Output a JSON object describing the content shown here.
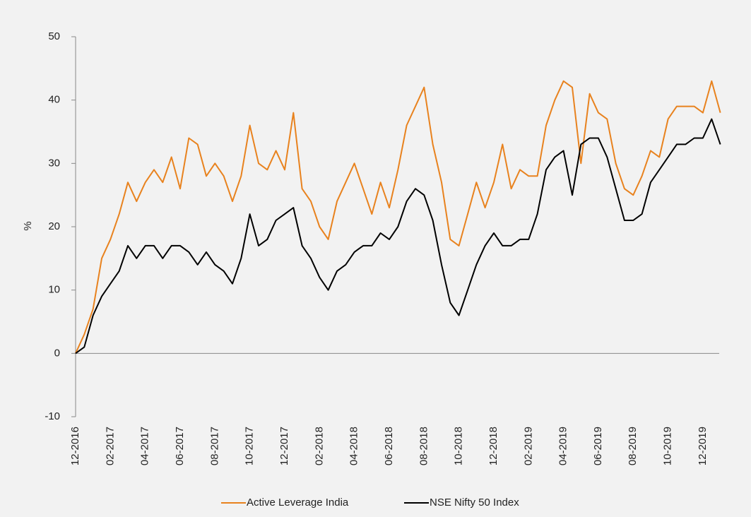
{
  "chart_data": {
    "type": "line",
    "y_label": "%",
    "categories": [
      "12-2016",
      null,
      null,
      null,
      "02-2017",
      null,
      null,
      null,
      "04-2017",
      null,
      null,
      null,
      "06-2017",
      null,
      null,
      null,
      "08-2017",
      null,
      null,
      null,
      "10-2017",
      null,
      null,
      null,
      "12-2017",
      null,
      null,
      null,
      "02-2018",
      null,
      null,
      null,
      "04-2018",
      null,
      null,
      null,
      "06-2018",
      null,
      null,
      null,
      "08-2018",
      null,
      null,
      null,
      "10-2018",
      null,
      null,
      null,
      "12-2018",
      null,
      null,
      null,
      "02-2019",
      null,
      null,
      null,
      "04-2019",
      null,
      null,
      null,
      "06-2019",
      null,
      null,
      null,
      "08-2019",
      null,
      null,
      null,
      "10-2019",
      null,
      null,
      null,
      "12-2019",
      null,
      null
    ],
    "series": [
      {
        "name": "Active Leverage India",
        "color": "#e8821e",
        "values": [
          0,
          3,
          7,
          15,
          18,
          22,
          27,
          24,
          27,
          29,
          27,
          31,
          26,
          34,
          33,
          28,
          30,
          28,
          24,
          28,
          36,
          30,
          29,
          32,
          29,
          38,
          26,
          24,
          20,
          18,
          24,
          27,
          30,
          26,
          22,
          27,
          23,
          29,
          36,
          39,
          42,
          33,
          27,
          18,
          17,
          22,
          27,
          23,
          27,
          33,
          26,
          29,
          28,
          28,
          36,
          40,
          43,
          42,
          30,
          41,
          38,
          37,
          30,
          26,
          25,
          28,
          32,
          31,
          37,
          39,
          39,
          39,
          38,
          43,
          38
        ]
      },
      {
        "name": "NSE Nifty 50 Index",
        "color": "#000000",
        "values": [
          0,
          1,
          6,
          9,
          11,
          13,
          17,
          15,
          17,
          17,
          15,
          17,
          17,
          16,
          14,
          16,
          14,
          13,
          11,
          15,
          22,
          17,
          18,
          21,
          22,
          23,
          17,
          15,
          12,
          10,
          13,
          14,
          16,
          17,
          17,
          19,
          18,
          20,
          24,
          26,
          25,
          21,
          14,
          8,
          6,
          10,
          14,
          17,
          19,
          17,
          17,
          18,
          18,
          22,
          29,
          31,
          32,
          25,
          33,
          34,
          34,
          31,
          26,
          21,
          21,
          22,
          27,
          29,
          31,
          33,
          33,
          34,
          34,
          37,
          33
        ]
      }
    ],
    "ylim": [
      -10,
      50
    ],
    "yticks": [
      -10,
      0,
      10,
      20,
      30,
      40,
      50
    ],
    "legend": "bottom"
  }
}
